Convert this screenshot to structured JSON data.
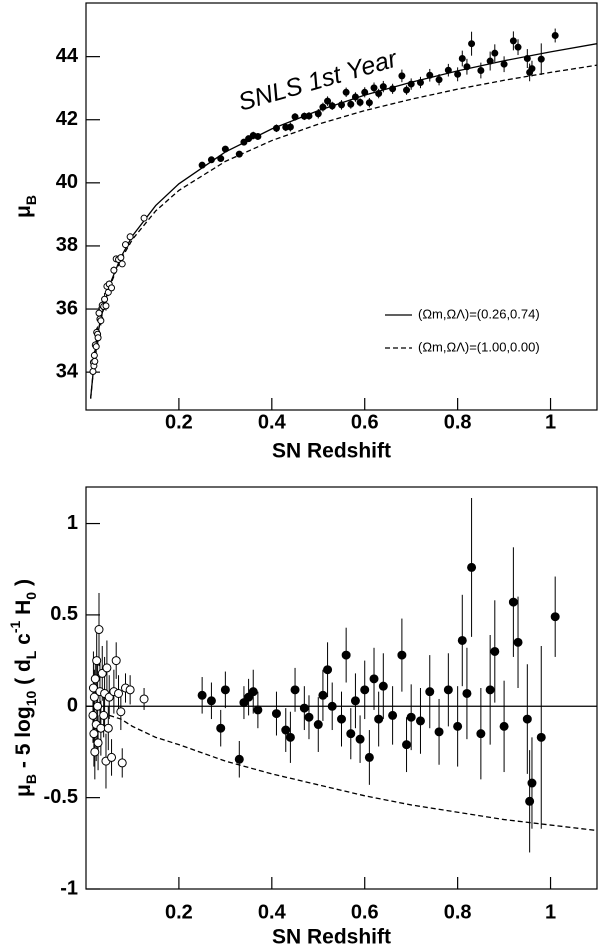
{
  "chart_data": [
    {
      "type": "scatter",
      "annotation": "SNLS 1st Year",
      "x_label": "SN Redshift",
      "y_label": [
        {
          "text": "μ"
        },
        {
          "text": "B",
          "sub": true
        }
      ],
      "xlim": [
        0,
        1.1
      ],
      "ylim": [
        32.8,
        45.7
      ],
      "xticks": [
        0.2,
        0.4,
        0.6,
        0.8,
        1
      ],
      "yticks": [
        34,
        36,
        38,
        40,
        42,
        44
      ],
      "legend": "lower right",
      "series": [
        {
          "name": "(Ωm,ΩΛ)=(0.26,0.74)",
          "line": "solid",
          "color": "#000000",
          "x": [
            0.01,
            0.02,
            0.03,
            0.05,
            0.075,
            0.1,
            0.15,
            0.2,
            0.3,
            0.4,
            0.5,
            0.6,
            0.7,
            0.8,
            0.9,
            1.0,
            1.1
          ],
          "values": [
            33.17,
            34.69,
            35.59,
            36.73,
            37.64,
            38.32,
            39.28,
            39.97,
            40.98,
            41.71,
            42.29,
            42.78,
            43.19,
            43.55,
            43.87,
            44.15,
            44.41
          ]
        },
        {
          "name": "(Ωm,ΩΛ)=(1.00,0.00)",
          "line": "dashed",
          "color": "#000000",
          "x": [
            0.01,
            0.02,
            0.03,
            0.05,
            0.075,
            0.1,
            0.15,
            0.2,
            0.3,
            0.4,
            0.5,
            0.6,
            0.7,
            0.8,
            0.9,
            1.0,
            1.1
          ],
          "values": [
            33.16,
            34.68,
            35.56,
            36.68,
            37.57,
            38.21,
            39.11,
            39.76,
            40.68,
            41.34,
            41.86,
            42.29,
            42.65,
            42.97,
            43.25,
            43.5,
            43.73
          ]
        },
        {
          "marker": "open",
          "color": "#000000",
          "x": [
            0.015,
            0.016,
            0.017,
            0.018,
            0.019,
            0.02,
            0.022,
            0.023,
            0.025,
            0.026,
            0.028,
            0.03,
            0.032,
            0.035,
            0.038,
            0.04,
            0.043,
            0.045,
            0.048,
            0.05,
            0.055,
            0.06,
            0.065,
            0.07,
            0.075,
            0.078,
            0.085,
            0.095,
            0.125
          ],
          "values": [
            34.02,
            34.31,
            34.2,
            34.53,
            34.34,
            34.86,
            34.81,
            35.26,
            35.2,
            35.09,
            35.87,
            35.68,
            35.63,
            36.12,
            36.08,
            36.31,
            36.1,
            36.72,
            36.53,
            36.79,
            36.67,
            37.23,
            37.59,
            37.57,
            37.63,
            37.43,
            38.04,
            38.29,
            38.88
          ],
          "errors": [
            0.15,
            0.2,
            0.18,
            0.15,
            0.15,
            0.12,
            0.2,
            0.15,
            0.25,
            0.15,
            0.2,
            0.18,
            0.15,
            0.15,
            0.12,
            0.2,
            0.15,
            0.15,
            0.12,
            0.12,
            0.1,
            0.12,
            0.1,
            0.1,
            0.1,
            0.08,
            0.08,
            0.08,
            0.06
          ]
        },
        {
          "marker": "filled",
          "color": "#000000",
          "x": [
            0.25,
            0.27,
            0.29,
            0.3,
            0.33,
            0.34,
            0.35,
            0.36,
            0.37,
            0.41,
            0.43,
            0.44,
            0.45,
            0.47,
            0.48,
            0.5,
            0.51,
            0.52,
            0.53,
            0.55,
            0.56,
            0.57,
            0.58,
            0.59,
            0.6,
            0.61,
            0.62,
            0.63,
            0.64,
            0.66,
            0.68,
            0.69,
            0.7,
            0.72,
            0.74,
            0.76,
            0.78,
            0.8,
            0.81,
            0.82,
            0.83,
            0.85,
            0.87,
            0.88,
            0.9,
            0.92,
            0.93,
            0.95,
            0.955,
            0.96,
            0.98,
            1.01
          ],
          "values": [
            40.56,
            40.73,
            40.77,
            41.07,
            40.91,
            41.29,
            41.4,
            41.5,
            41.47,
            41.73,
            41.76,
            41.77,
            42.09,
            42.11,
            42.12,
            42.19,
            42.4,
            42.59,
            42.44,
            42.47,
            42.87,
            42.49,
            42.72,
            42.55,
            42.87,
            42.54,
            43.01,
            42.83,
            43.05,
            42.98,
            43.39,
            42.94,
            43.13,
            43.18,
            43.41,
            43.27,
            43.57,
            43.44,
            43.94,
            43.68,
            44.41,
            43.56,
            43.86,
            44.11,
            43.76,
            44.5,
            44.3,
            43.94,
            43.5,
            43.62,
            43.92,
            44.67
          ],
          "errors": [
            0.1,
            0.1,
            0.1,
            0.1,
            0.1,
            0.09,
            0.1,
            0.12,
            0.1,
            0.12,
            0.12,
            0.14,
            0.12,
            0.12,
            0.12,
            0.15,
            0.14,
            0.15,
            0.13,
            0.15,
            0.15,
            0.14,
            0.15,
            0.13,
            0.16,
            0.15,
            0.17,
            0.15,
            0.18,
            0.16,
            0.2,
            0.15,
            0.18,
            0.18,
            0.2,
            0.18,
            0.2,
            0.22,
            0.25,
            0.25,
            0.38,
            0.25,
            0.3,
            0.28,
            0.25,
            0.3,
            0.25,
            0.3,
            0.28,
            0.25,
            0.5,
            0.22
          ]
        }
      ]
    },
    {
      "type": "scatter",
      "x_label": "SN Redshift",
      "y_label": [
        {
          "text": "μ"
        },
        {
          "text": "B",
          "sub": true
        },
        {
          "text": " - 5 log"
        },
        {
          "text": "10",
          "sub": true
        },
        {
          "text": " ( d"
        },
        {
          "text": "L",
          "sub": true
        },
        {
          "text": " c"
        },
        {
          "text": "-1",
          "sup": true
        },
        {
          "text": " H"
        },
        {
          "text": "0",
          "sub": true
        },
        {
          "text": " )"
        }
      ],
      "xlim": [
        0,
        1.1
      ],
      "ylim": [
        -1,
        1.2
      ],
      "xticks": [
        0.2,
        0.4,
        0.6,
        0.8,
        1
      ],
      "yticks": [
        -1,
        -0.5,
        0,
        0.5,
        1
      ],
      "series": [
        {
          "line": "solid",
          "color": "#000000",
          "x": [
            0,
            1.1
          ],
          "values": [
            0,
            0
          ]
        },
        {
          "line": "dashed",
          "color": "#000000",
          "x": [
            0.05,
            0.075,
            0.1,
            0.15,
            0.2,
            0.3,
            0.4,
            0.5,
            0.6,
            0.7,
            0.8,
            0.9,
            1.0,
            1.1
          ],
          "values": [
            -0.05,
            -0.07,
            -0.11,
            -0.17,
            -0.21,
            -0.3,
            -0.37,
            -0.43,
            -0.49,
            -0.54,
            -0.58,
            -0.62,
            -0.65,
            -0.68
          ]
        },
        {
          "marker": "open",
          "color": "#000000",
          "x": [
            0.015,
            0.016,
            0.017,
            0.018,
            0.019,
            0.02,
            0.022,
            0.023,
            0.025,
            0.026,
            0.028,
            0.03,
            0.032,
            0.035,
            0.038,
            0.04,
            0.043,
            0.045,
            0.048,
            0.05,
            0.055,
            0.06,
            0.065,
            0.07,
            0.075,
            0.078,
            0.085,
            0.095,
            0.125
          ],
          "values": [
            -0.05,
            0.1,
            -0.15,
            0.05,
            -0.25,
            0.15,
            -0.1,
            0.25,
            0.0,
            -0.2,
            0.42,
            0.08,
            -0.12,
            0.18,
            -0.05,
            0.07,
            -0.3,
            0.21,
            -0.12,
            0.05,
            -0.28,
            0.08,
            0.25,
            0.07,
            -0.03,
            -0.31,
            0.1,
            0.09,
            0.04
          ],
          "errors": [
            0.15,
            0.2,
            0.18,
            0.15,
            0.15,
            0.12,
            0.2,
            0.15,
            0.25,
            0.15,
            0.2,
            0.18,
            0.15,
            0.15,
            0.12,
            0.2,
            0.15,
            0.15,
            0.12,
            0.12,
            0.1,
            0.12,
            0.1,
            0.1,
            0.1,
            0.08,
            0.08,
            0.08,
            0.06
          ]
        },
        {
          "marker": "filled",
          "color": "#000000",
          "x": [
            0.25,
            0.27,
            0.29,
            0.3,
            0.33,
            0.34,
            0.35,
            0.36,
            0.37,
            0.41,
            0.43,
            0.44,
            0.45,
            0.47,
            0.48,
            0.5,
            0.51,
            0.52,
            0.53,
            0.55,
            0.56,
            0.57,
            0.58,
            0.59,
            0.6,
            0.61,
            0.62,
            0.63,
            0.64,
            0.66,
            0.68,
            0.69,
            0.7,
            0.72,
            0.74,
            0.76,
            0.78,
            0.8,
            0.81,
            0.82,
            0.83,
            0.85,
            0.87,
            0.88,
            0.9,
            0.92,
            0.93,
            0.95,
            0.955,
            0.96,
            0.98,
            1.01
          ],
          "values": [
            0.06,
            0.03,
            -0.12,
            0.09,
            -0.29,
            0.02,
            0.05,
            0.08,
            -0.02,
            -0.04,
            -0.13,
            -0.17,
            0.09,
            -0.01,
            -0.06,
            -0.1,
            0.06,
            0.2,
            0.0,
            -0.07,
            0.28,
            -0.15,
            0.03,
            -0.18,
            0.09,
            -0.28,
            0.15,
            -0.07,
            0.11,
            -0.05,
            0.28,
            -0.21,
            -0.06,
            -0.08,
            0.08,
            -0.14,
            0.09,
            -0.11,
            0.36,
            0.07,
            0.76,
            -0.15,
            0.09,
            0.3,
            -0.11,
            0.57,
            0.35,
            -0.07,
            -0.52,
            -0.42,
            -0.17,
            0.49
          ],
          "errors": [
            0.1,
            0.1,
            0.1,
            0.1,
            0.1,
            0.09,
            0.1,
            0.12,
            0.1,
            0.12,
            0.12,
            0.14,
            0.12,
            0.12,
            0.12,
            0.15,
            0.14,
            0.15,
            0.13,
            0.15,
            0.15,
            0.14,
            0.15,
            0.13,
            0.16,
            0.15,
            0.17,
            0.15,
            0.18,
            0.16,
            0.2,
            0.15,
            0.18,
            0.18,
            0.2,
            0.18,
            0.2,
            0.22,
            0.25,
            0.25,
            0.38,
            0.25,
            0.3,
            0.28,
            0.25,
            0.3,
            0.25,
            0.3,
            0.28,
            0.25,
            0.5,
            0.22
          ]
        }
      ]
    }
  ]
}
